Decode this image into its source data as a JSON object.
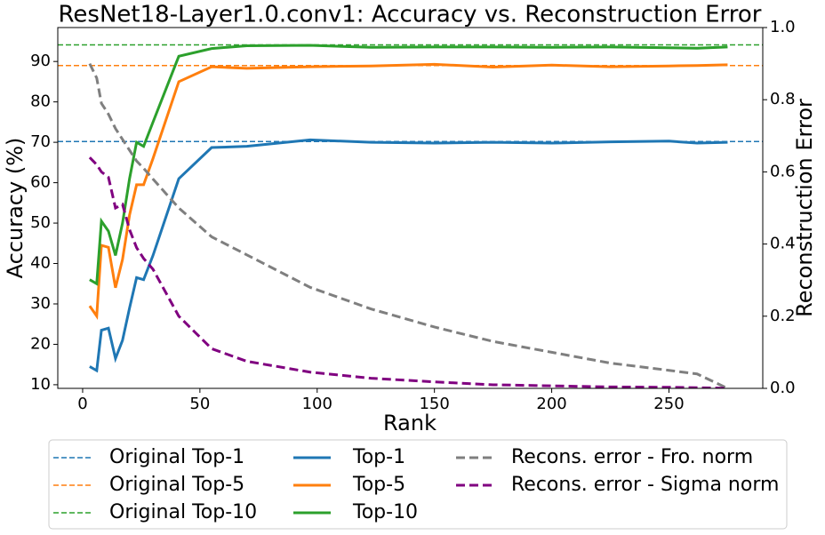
{
  "chart_data": {
    "type": "line",
    "title": "ResNet18-Layer1.0.conv1: Accuracy vs. Reconstruction Error",
    "x_label": "Rank",
    "y_label": "Accuracy (%)",
    "y2_label": "Reconstruction Error",
    "x": [
      3,
      6,
      8,
      11,
      14,
      17,
      20,
      23,
      26,
      30,
      41,
      55,
      70,
      97,
      123,
      150,
      175,
      200,
      225,
      250,
      262,
      275
    ],
    "reference_lines": [
      {
        "name": "Original Top-1",
        "color": "#1f77b4",
        "value": 70.2
      },
      {
        "name": "Original Top-5",
        "color": "#ff7f0e",
        "value": 89
      },
      {
        "name": "Original Top-10",
        "color": "#2ca02c",
        "value": 94.1
      }
    ],
    "series": [
      {
        "name": "Top-1",
        "color": "#1f77b4",
        "linestyle": "solid",
        "values": [
          14.5,
          13.5,
          23.5,
          24,
          16.5,
          21,
          29,
          36.5,
          36,
          42,
          61,
          68.7,
          69,
          70.6,
          70,
          69.8,
          70,
          69.8,
          70.1,
          70.3,
          69.8,
          70
        ]
      },
      {
        "name": "Top-5",
        "color": "#ff7f0e",
        "linestyle": "solid",
        "values": [
          29.5,
          27,
          44.5,
          44,
          34,
          41,
          52,
          59.5,
          59.5,
          66,
          85,
          88.7,
          88.3,
          88.7,
          88.9,
          89.3,
          88.6,
          89.1,
          88.7,
          88.9,
          89,
          89.2
        ]
      },
      {
        "name": "Top-10",
        "color": "#2ca02c",
        "linestyle": "solid",
        "values": [
          36,
          35,
          50.5,
          48,
          42,
          50,
          61,
          70,
          69,
          75,
          91.3,
          93.2,
          93.9,
          94,
          93.5,
          93.6,
          93.6,
          93.5,
          93.6,
          93.4,
          93.3,
          93.6
        ]
      },
      {
        "name": "Recons. error - Fro. norm",
        "color": "#7f7f7f",
        "linestyle": "dashed",
        "axis": "y2",
        "values": [
          0.9,
          0.86,
          0.79,
          0.76,
          0.72,
          0.69,
          0.66,
          0.63,
          0.61,
          0.58,
          0.5,
          0.42,
          0.37,
          0.28,
          0.22,
          0.17,
          0.13,
          0.1,
          0.07,
          0.05,
          0.04,
          0.0
        ]
      },
      {
        "name": "Recons. error - Sigma norm",
        "color": "#800080",
        "linestyle": "dashed",
        "axis": "y2",
        "values": [
          0.64,
          0.62,
          0.6,
          0.585,
          0.5,
          0.51,
          0.44,
          0.39,
          0.36,
          0.33,
          0.2,
          0.11,
          0.075,
          0.045,
          0.028,
          0.018,
          0.01,
          0.007,
          0.004,
          0.003,
          0.002,
          0.0
        ]
      }
    ],
    "xlim": [
      -10.6,
      290
    ],
    "ylim": [
      9.1,
      98.4
    ],
    "y2lim": [
      0,
      1
    ],
    "xticks": [
      0,
      50,
      100,
      150,
      200,
      250
    ],
    "yticks": [
      10,
      20,
      30,
      40,
      50,
      60,
      70,
      80,
      90
    ],
    "y2ticks": [
      {
        "value": 0,
        "label": "0.0"
      },
      0.2,
      0.4,
      0.6,
      0.8,
      {
        "value": 1,
        "label": "1.0"
      }
    ],
    "legend": "below"
  }
}
